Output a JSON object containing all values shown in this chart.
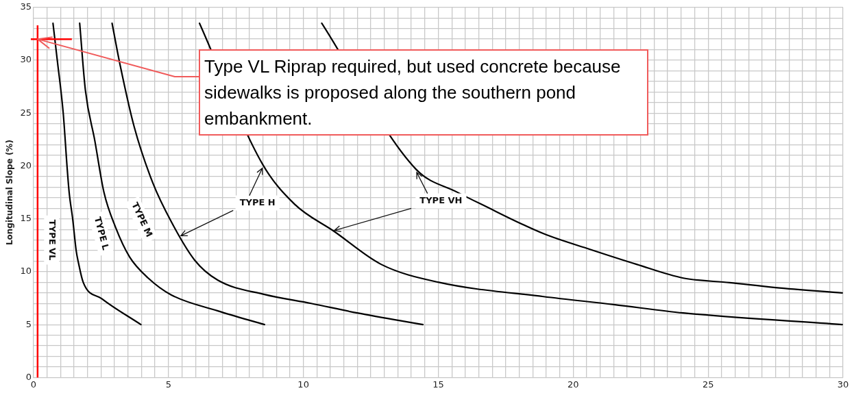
{
  "chart_data": {
    "type": "line",
    "ylabel": "Longitudinal Slope (%)",
    "xlim": [
      0,
      30
    ],
    "ylim": [
      0,
      35
    ],
    "xticks": [
      0,
      {
        "value": 0.5,
        "label": null
      },
      {
        "value": 1,
        "label": null
      },
      {
        "value": 1.5,
        "label": null
      },
      {
        "value": 2,
        "label": null
      },
      {
        "value": 2.5,
        "label": null
      },
      {
        "value": 3,
        "label": null
      },
      {
        "value": 3.5,
        "label": null
      },
      {
        "value": 4,
        "label": null
      },
      {
        "value": 4.5,
        "label": null
      },
      5,
      {
        "value": 5.5,
        "label": null
      },
      {
        "value": 6,
        "label": null
      },
      {
        "value": 6.5,
        "label": null
      },
      {
        "value": 7,
        "label": null
      },
      {
        "value": 7.5,
        "label": null
      },
      {
        "value": 8,
        "label": null
      },
      {
        "value": 8.5,
        "label": null
      },
      {
        "value": 9,
        "label": null
      },
      {
        "value": 9.5,
        "label": null
      },
      10,
      {
        "value": 10.5,
        "label": null
      },
      {
        "value": 11,
        "label": null
      },
      {
        "value": 11.5,
        "label": null
      },
      {
        "value": 12,
        "label": null
      },
      {
        "value": 12.5,
        "label": null
      },
      {
        "value": 13,
        "label": null
      },
      {
        "value": 13.5,
        "label": null
      },
      {
        "value": 14,
        "label": null
      },
      {
        "value": 14.5,
        "label": null
      },
      15,
      {
        "value": 15.5,
        "label": null
      },
      {
        "value": 16,
        "label": null
      },
      {
        "value": 16.5,
        "label": null
      },
      {
        "value": 17,
        "label": null
      },
      {
        "value": 17.5,
        "label": null
      },
      {
        "value": 18,
        "label": null
      },
      {
        "value": 18.5,
        "label": null
      },
      {
        "value": 19,
        "label": null
      },
      {
        "value": 19.5,
        "label": null
      },
      20,
      {
        "value": 20.5,
        "label": null
      },
      {
        "value": 21,
        "label": null
      },
      {
        "value": 21.5,
        "label": null
      },
      {
        "value": 22,
        "label": null
      },
      {
        "value": 22.5,
        "label": null
      },
      {
        "value": 23,
        "label": null
      },
      {
        "value": 23.5,
        "label": null
      },
      {
        "value": 24,
        "label": null
      },
      {
        "value": 24.5,
        "label": null
      },
      25,
      {
        "value": 25.5,
        "label": null
      },
      {
        "value": 26,
        "label": null
      },
      {
        "value": 26.5,
        "label": null
      },
      {
        "value": 27,
        "label": null
      },
      {
        "value": 27.5,
        "label": null
      },
      {
        "value": 28,
        "label": null
      },
      {
        "value": 28.5,
        "label": null
      },
      {
        "value": 29,
        "label": null
      },
      {
        "value": 29.5,
        "label": null
      },
      30
    ],
    "yticks": [
      0,
      {
        "value": 1,
        "label": null
      },
      {
        "value": 2,
        "label": null
      },
      {
        "value": 3,
        "label": null
      },
      {
        "value": 4,
        "label": null
      },
      5,
      {
        "value": 6,
        "label": null
      },
      {
        "value": 7,
        "label": null
      },
      {
        "value": 8,
        "label": null
      },
      {
        "value": 9,
        "label": null
      },
      10,
      {
        "value": 11,
        "label": null
      },
      {
        "value": 12,
        "label": null
      },
      {
        "value": 13,
        "label": null
      },
      {
        "value": 14,
        "label": null
      },
      15,
      {
        "value": 16,
        "label": null
      },
      {
        "value": 17,
        "label": null
      },
      {
        "value": 18,
        "label": null
      },
      {
        "value": 19,
        "label": null
      },
      20,
      {
        "value": 21,
        "label": null
      },
      {
        "value": 22,
        "label": null
      },
      {
        "value": 23,
        "label": null
      },
      {
        "value": 24,
        "label": null
      },
      25,
      {
        "value": 26,
        "label": null
      },
      {
        "value": 27,
        "label": null
      },
      {
        "value": 28,
        "label": null
      },
      {
        "value": 29,
        "label": null
      },
      30,
      {
        "value": 31,
        "label": null
      },
      {
        "value": 32,
        "label": null
      },
      {
        "value": 33,
        "label": null
      },
      {
        "value": 34,
        "label": null
      },
      35
    ],
    "grid": true,
    "marker": "none",
    "line_style": "solid",
    "series": [
      {
        "name": "TYPE VL",
        "color": "#000000",
        "x": [
          0.72,
          0.88,
          1.1,
          1.24,
          1.32,
          1.45,
          1.58,
          1.66,
          1.84,
          2.53,
          3.98
        ],
        "values": [
          33.5,
          30,
          25,
          20,
          17.5,
          15,
          12,
          10.9,
          9,
          7.45,
          5
        ]
      },
      {
        "name": "TYPE L",
        "color": "#000000",
        "x": [
          1.71,
          1.92,
          2.27,
          2.61,
          3.04,
          3.56,
          4.25,
          5.11,
          6.83,
          8.56
        ],
        "values": [
          33.5,
          27.2,
          22.4,
          17.5,
          14.2,
          11.4,
          9.4,
          7.8,
          6.3,
          5
        ]
      },
      {
        "name": "TYPE M",
        "color": "#000000",
        "x": [
          2.91,
          3.22,
          3.73,
          4.42,
          5.11,
          5.97,
          6.83,
          8.56,
          10.29,
          12.0,
          14.43
        ],
        "values": [
          33.5,
          29.4,
          23.7,
          18.4,
          14.7,
          11.1,
          9.2,
          7.85,
          7.0,
          6.1,
          5
        ]
      },
      {
        "name": "TYPE H",
        "color": "#000000",
        "x": [
          6.15,
          6.7,
          7.35,
          8.48,
          9.67,
          11.15,
          12.88,
          15.02,
          18.9,
          21.5,
          24.08,
          29.97
        ],
        "values": [
          33.5,
          null,
          null,
          20.2,
          16.4,
          13.8,
          10.7,
          9.0,
          7.65,
          6.9,
          6.1,
          5.0
        ]
      },
      {
        "name": "TYPE VH",
        "color": "#000000",
        "x": [
          10.68,
          11.4,
          12.52,
          14.17,
          15.72,
          16.58,
          18.9,
          20.64,
          22.35,
          24.08,
          25.8,
          27.5,
          29.97
        ],
        "values": [
          33.5,
          null,
          null,
          19.7,
          17.5,
          16.4,
          13.6,
          12.1,
          10.7,
          9.4,
          8.97,
          8.5,
          8.0
        ]
      }
    ],
    "ref_lines": [
      {
        "axis": "x",
        "value": 0.15,
        "color": "#ff0000"
      }
    ],
    "annotations": [
      {
        "text": "Type VL Riprap required, but used concrete because sidewalks is proposed along the southern pond embankment.",
        "x": 0.15,
        "y": 32
      }
    ]
  }
}
